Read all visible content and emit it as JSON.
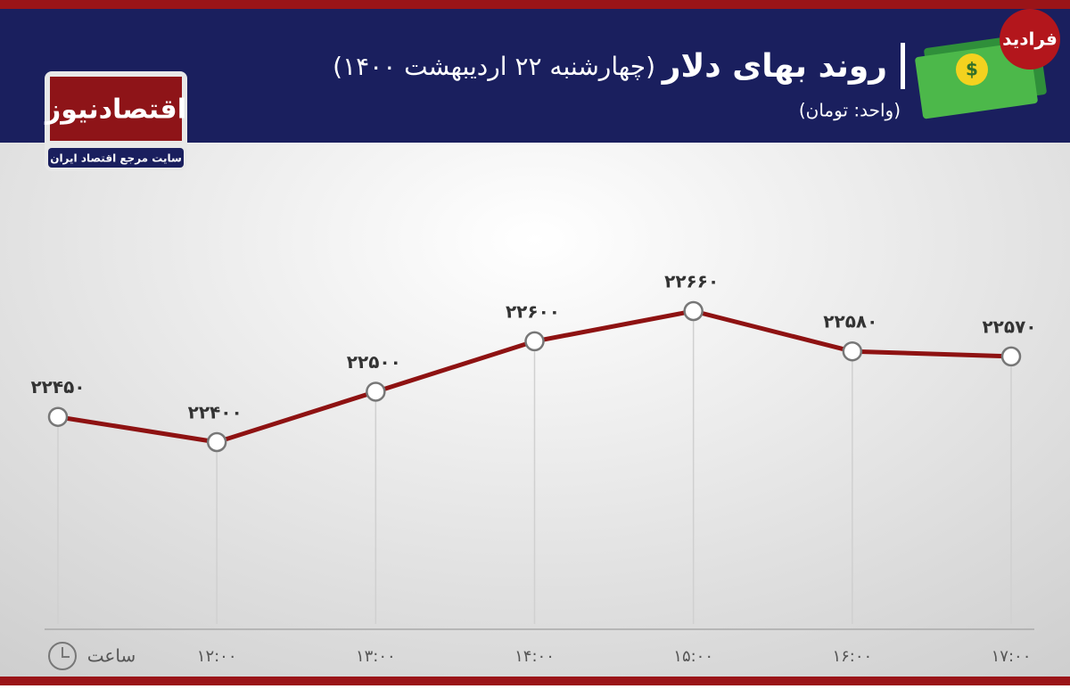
{
  "chart_data": {
    "type": "line",
    "title": "روند بهای دلار",
    "subtitle": "(چهارشنبه ۲۲ اردیبهشت ۱۴۰۰)",
    "unit_note": "(واحد: تومان)",
    "x_label": "ساعت",
    "categories": [
      null,
      "۱۲:۰۰",
      "۱۳:۰۰",
      "۱۴:۰۰",
      "۱۵:۰۰",
      "۱۶:۰۰",
      "۱۷:۰۰"
    ],
    "values": [
      22450,
      22400,
      22500,
      22600,
      22660,
      22580,
      22570
    ],
    "value_labels": [
      "۲۲۴۵۰",
      "۲۲۴۰۰",
      "۲۲۵۰۰",
      "۲۲۶۰۰",
      "۲۲۶۶۰",
      "۲۲۵۸۰",
      "۲۲۵۷۰"
    ],
    "color": "#8e1212"
  },
  "branding": {
    "logo": "اقتصادنیوز",
    "tagline": "سایت مرجع اقتصاد ایران",
    "badge": "فرادید"
  }
}
